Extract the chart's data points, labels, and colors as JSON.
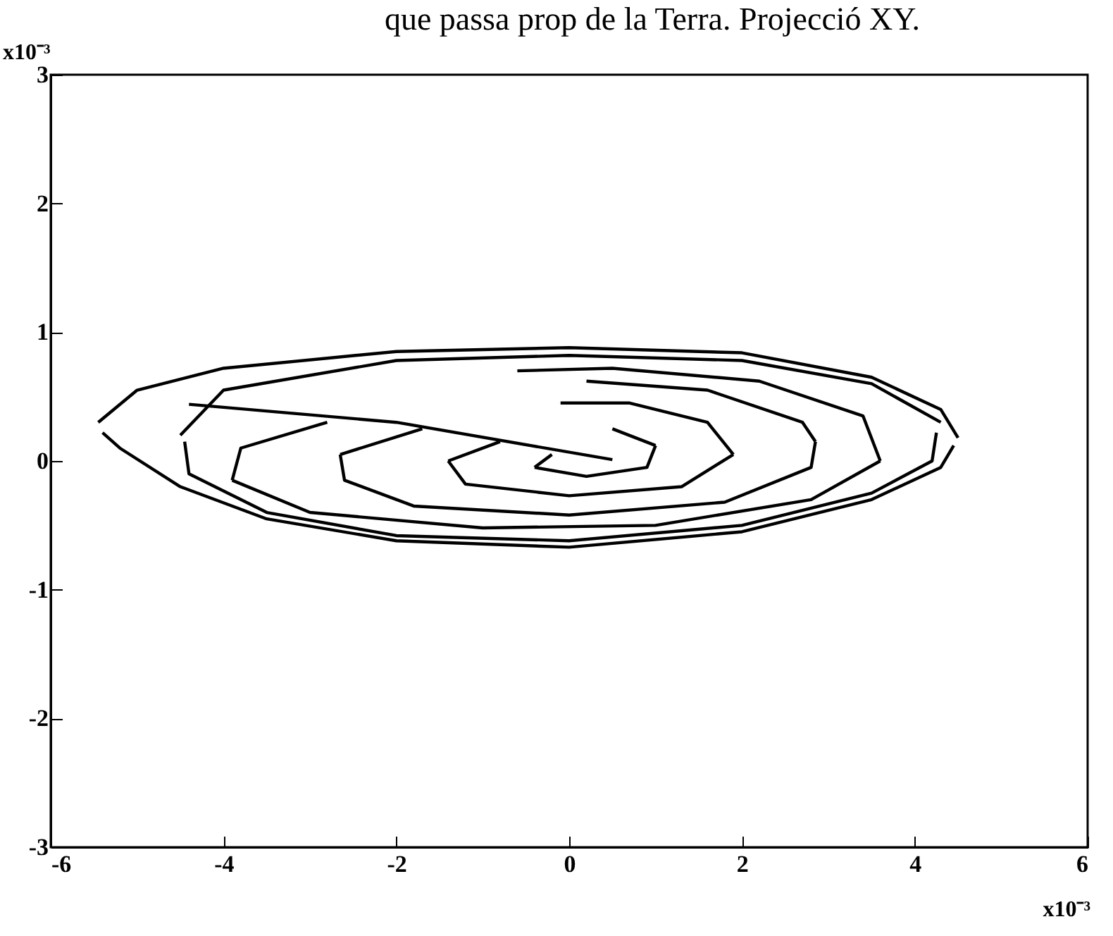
{
  "chart_data": {
    "type": "line",
    "title": "que passa prop de la Terra. Projecció XY.",
    "annotations": [
      "x10⁻³",
      "x10⁻³"
    ],
    "xlim": [
      -6,
      6
    ],
    "xticks": [
      -6,
      -4,
      -2,
      0,
      2,
      4,
      6
    ],
    "ylim": [
      -3,
      3
    ],
    "yticks": [
      -3,
      -2,
      -1,
      0,
      1,
      2,
      3
    ],
    "grid": false,
    "line_style": "solid",
    "marker": "none",
    "series": [
      {
        "color": "#000000",
        "x": [
          -5.45,
          -5.0,
          -4,
          -2,
          0,
          2,
          3.5,
          4.3,
          4.5
        ],
        "values": [
          0.3,
          0.55,
          0.72,
          0.85,
          0.88,
          0.84,
          0.65,
          0.4,
          0.18
        ]
      },
      {
        "color": "#000000",
        "x": [
          -5.4,
          -5.2,
          -4.5,
          -3.5,
          -2,
          0,
          2,
          3.5,
          4.3,
          4.45
        ],
        "values": [
          0.22,
          0.1,
          -0.2,
          -0.45,
          -0.62,
          -0.67,
          -0.55,
          -0.3,
          -0.05,
          0.12
        ]
      },
      {
        "color": "#000000",
        "x": [
          -4.5,
          -4,
          -2,
          0,
          2,
          3.5,
          4.3
        ],
        "values": [
          0.2,
          0.55,
          0.78,
          0.82,
          0.78,
          0.6,
          0.3
        ]
      },
      {
        "color": "#000000",
        "x": [
          -4.45,
          -4.4,
          -3.5,
          -2,
          0,
          2,
          3.5,
          4.2,
          4.25
        ],
        "values": [
          0.15,
          -0.1,
          -0.4,
          -0.58,
          -0.62,
          -0.5,
          -0.25,
          0,
          0.22
        ]
      },
      {
        "color": "#000000",
        "x": [
          -4.4,
          -2,
          0.5
        ],
        "values": [
          0.44,
          0.3,
          0.01
        ]
      },
      {
        "color": "#000000",
        "x": [
          -3.9,
          -3.8,
          -2.8
        ],
        "values": [
          -0.15,
          0.1,
          0.3
        ]
      },
      {
        "color": "#000000",
        "x": [
          -3.9,
          -3,
          -1,
          1,
          2.8,
          3.6
        ],
        "values": [
          -0.15,
          -0.4,
          -0.52,
          -0.5,
          -0.3,
          0
        ]
      },
      {
        "color": "#000000",
        "x": [
          -0.6,
          0.5,
          2.2,
          3.4,
          3.6
        ],
        "values": [
          0.7,
          0.72,
          0.62,
          0.35,
          0
        ]
      },
      {
        "color": "#000000",
        "x": [
          -2.65,
          -1.7
        ],
        "values": [
          0.05,
          0.25
        ]
      },
      {
        "color": "#000000",
        "x": [
          -2.65,
          -2.6,
          -1.8,
          0,
          1.8,
          2.8,
          2.85
        ],
        "values": [
          0.05,
          -0.15,
          -0.35,
          -0.42,
          -0.32,
          -0.05,
          0.15
        ]
      },
      {
        "color": "#000000",
        "x": [
          0.2,
          1.6,
          2.7,
          2.85
        ],
        "values": [
          0.62,
          0.55,
          0.3,
          0.15
        ]
      },
      {
        "color": "#000000",
        "x": [
          -1.4,
          -0.8
        ],
        "values": [
          0,
          0.15
        ]
      },
      {
        "color": "#000000",
        "x": [
          -1.4,
          -1.2,
          0,
          1.3,
          1.9
        ],
        "values": [
          0,
          -0.18,
          -0.27,
          -0.2,
          0.05
        ]
      },
      {
        "color": "#000000",
        "x": [
          -0.1,
          0.7,
          1.6,
          1.9
        ],
        "values": [
          0.45,
          0.45,
          0.3,
          0.05
        ]
      },
      {
        "color": "#000000",
        "x": [
          -0.4,
          -0.2
        ],
        "values": [
          -0.05,
          0.05
        ]
      },
      {
        "color": "#000000",
        "x": [
          -0.4,
          0.2,
          0.9,
          1.0
        ],
        "values": [
          -0.05,
          -0.12,
          -0.05,
          0.12
        ]
      },
      {
        "color": "#000000",
        "x": [
          0.5,
          1.0
        ],
        "values": [
          0.25,
          0.12
        ]
      }
    ]
  }
}
